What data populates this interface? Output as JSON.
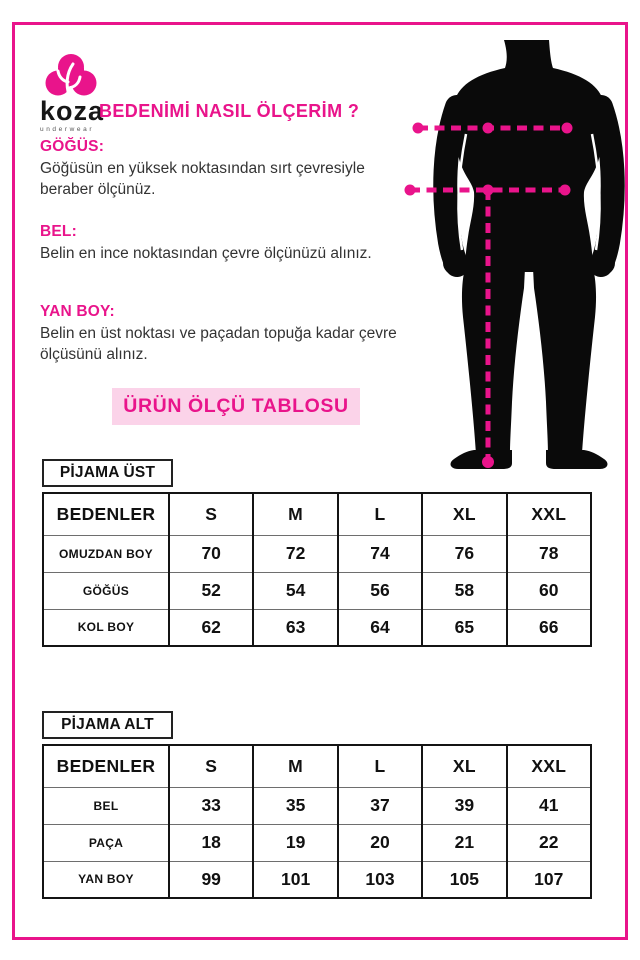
{
  "colors": {
    "magenta": "#e9148b",
    "banner_bg": "#fbd3e9",
    "silhouette": "#0a0a0a"
  },
  "logo": {
    "brand": "koza",
    "tagline": "underwear"
  },
  "title": "BEDENİMİ NASIL ÖLÇERİM ?",
  "sections": [
    {
      "heading": "GÖĞÜS:",
      "body": "Göğüsün en yüksek noktasından sırt çevresiyle beraber ölçünüz."
    },
    {
      "heading": "BEL:",
      "body": "Belin en ince noktasından çevre ölçünüzü alınız."
    },
    {
      "heading": "YAN BOY:",
      "body": "Belin en üst noktası ve paçadan topuğa kadar çevre ölçüsünü alınız."
    }
  ],
  "banner": "ÜRÜN ÖLÇÜ TABLOSU",
  "tables": [
    {
      "label": "PİJAMA ÜST",
      "columns": [
        "BEDENLER",
        "S",
        "M",
        "L",
        "XL",
        "XXL"
      ],
      "rows": [
        [
          "OMUZDAN BOY",
          "70",
          "72",
          "74",
          "76",
          "78"
        ],
        [
          "GÖĞÜS",
          "52",
          "54",
          "56",
          "58",
          "60"
        ],
        [
          "KOL BOY",
          "62",
          "63",
          "64",
          "65",
          "66"
        ]
      ]
    },
    {
      "label": "PİJAMA ALT",
      "columns": [
        "BEDENLER",
        "S",
        "M",
        "L",
        "XL",
        "XXL"
      ],
      "rows": [
        [
          "BEL",
          "33",
          "35",
          "37",
          "39",
          "41"
        ],
        [
          "PAÇA",
          "18",
          "19",
          "20",
          "21",
          "22"
        ],
        [
          "YAN BOY",
          "99",
          "101",
          "103",
          "105",
          "107"
        ]
      ]
    }
  ]
}
